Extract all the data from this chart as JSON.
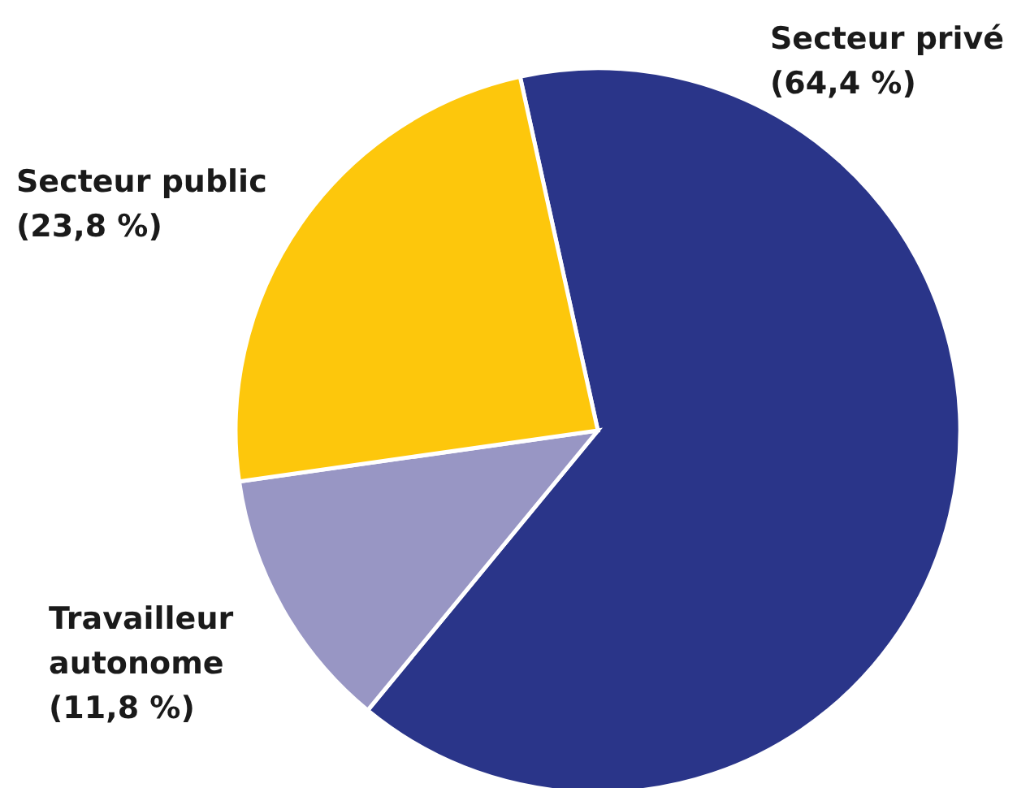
{
  "chart_data": {
    "type": "pie",
    "categories": [
      "Secteur privé",
      "Travailleur autonome",
      "Secteur public"
    ],
    "values": [
      64.4,
      11.8,
      23.8
    ],
    "value_labels": [
      "(64,4 %)",
      "(11,8 %)",
      "(23,8 %)"
    ],
    "colors": [
      "#2a3589",
      "#9896c4",
      "#fdc70c"
    ]
  }
}
